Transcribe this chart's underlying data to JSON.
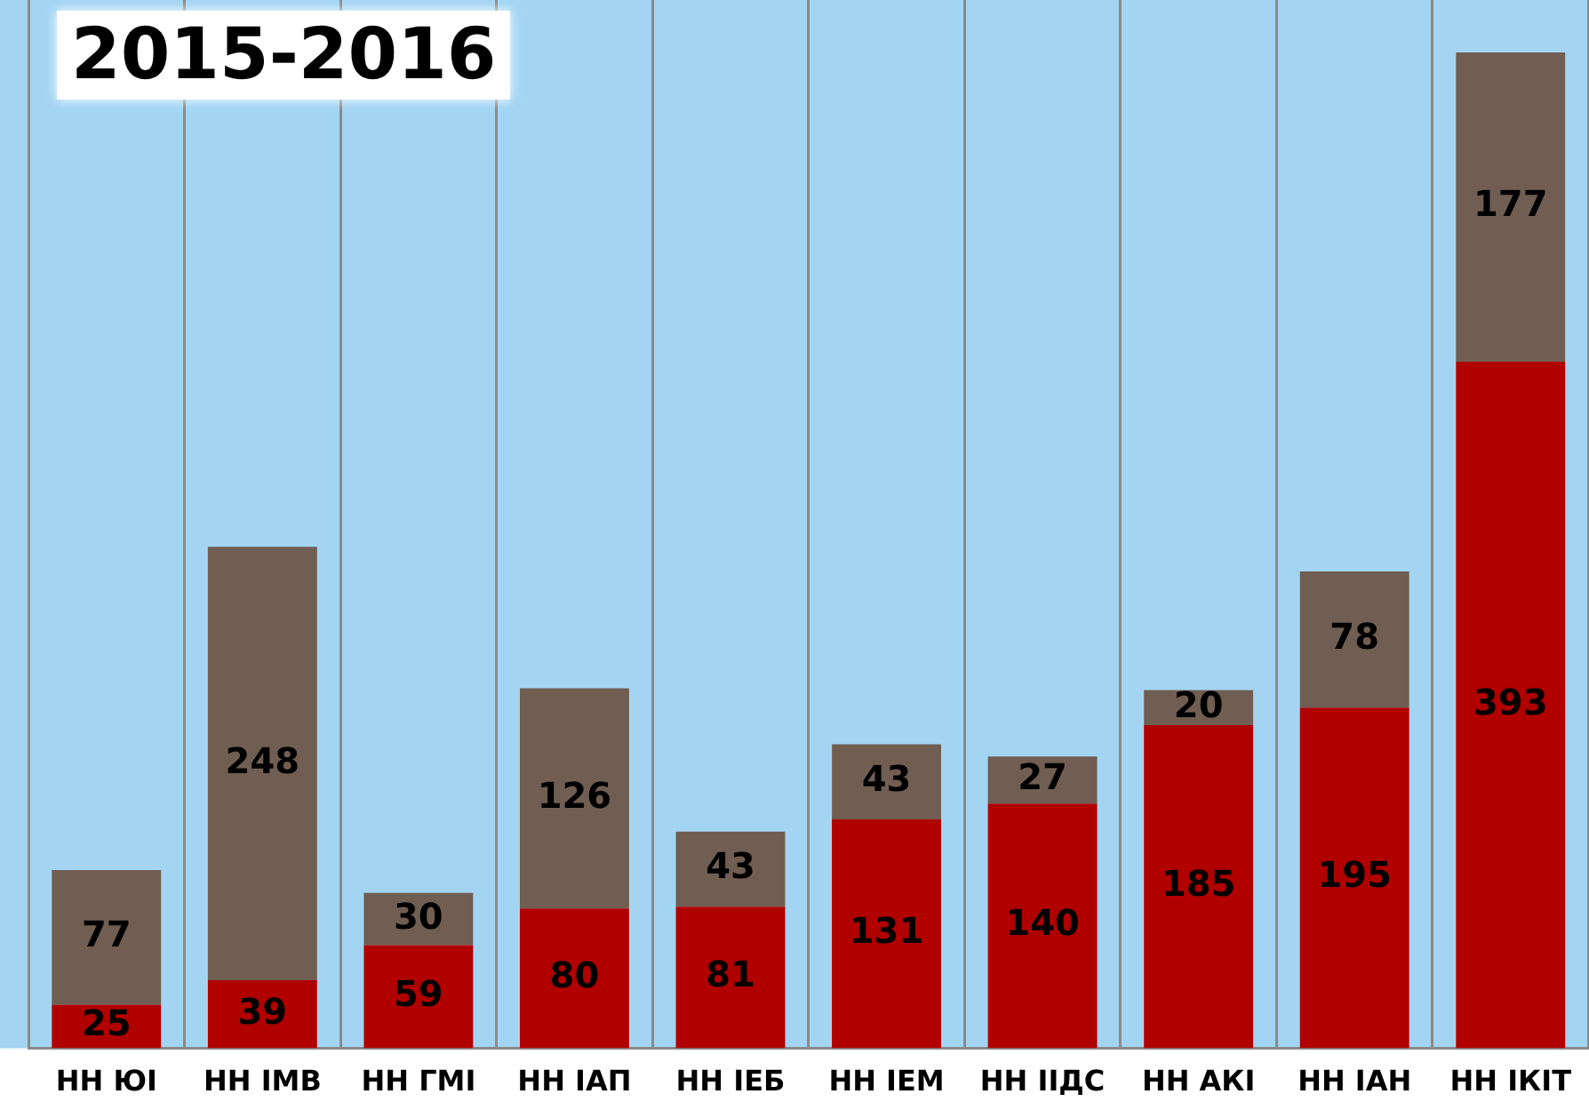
{
  "chart_data": {
    "type": "bar",
    "title": "2015-2016",
    "stacked": true,
    "data_labels": true,
    "grid": "x",
    "legend": false,
    "categories": [
      "НН ЮІ",
      "НН ІМВ",
      "НН ГМІ",
      "НН ІАП",
      "НН ІЕБ",
      "НН ІЕМ",
      "НН ІІДС",
      "НН АКІ",
      "НН ІАН",
      "НН ІКІТ"
    ],
    "series": [
      {
        "color": "#b00000",
        "values": [
          25,
          39,
          59,
          80,
          81,
          131,
          140,
          185,
          195,
          393
        ]
      },
      {
        "color": "#705e52",
        "values": [
          77,
          248,
          30,
          126,
          43,
          43,
          27,
          20,
          78,
          177
        ]
      }
    ]
  }
}
